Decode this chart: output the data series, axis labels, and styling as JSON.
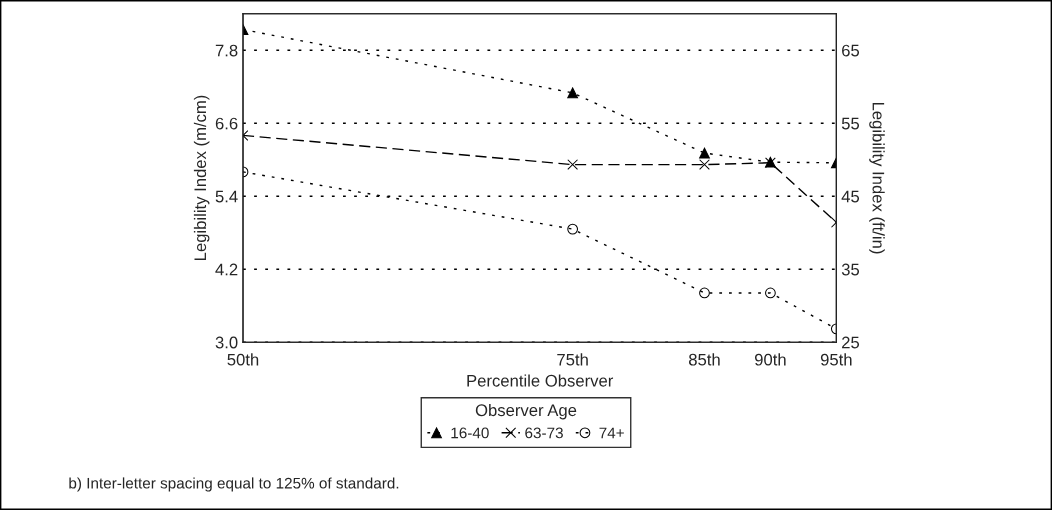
{
  "chart_data": {
    "type": "line",
    "xlabel": "Percentile Observer",
    "ylabel": "Legibility Index (m/cm)",
    "y2label": "Legibility Index (ft/in)",
    "legend_title": "Observer Age",
    "x": [
      50,
      75,
      85,
      90,
      95
    ],
    "series": [
      {
        "name": "16-40",
        "color": "#000000",
        "marker": "triangle",
        "line_style": "dotted",
        "values": [
          8.14,
          7.1,
          6.11,
          5.96,
          5.95
        ]
      },
      {
        "name": "63-73",
        "color": "#000000",
        "marker": "cross",
        "line_style": "dashed",
        "values": [
          6.4,
          5.92,
          5.92,
          5.95,
          4.97
        ]
      },
      {
        "name": "74+",
        "color": "#000000",
        "marker": "circle",
        "line_style": "dotted",
        "values": [
          5.8,
          4.86,
          3.81,
          3.81,
          3.22
        ]
      }
    ],
    "xlim": [
      50,
      95
    ],
    "xticks": [
      {
        "value": 50,
        "label": "50th"
      },
      {
        "value": 75,
        "label": "75th"
      },
      {
        "value": 85,
        "label": "85th"
      },
      {
        "value": 90,
        "label": "90th"
      },
      {
        "value": 95,
        "label": "95th"
      }
    ],
    "ylim": [
      3.0,
      8.4
    ],
    "yticks": [
      {
        "value": 3.0,
        "label": "3.0"
      },
      4.2,
      5.4,
      6.6,
      7.8
    ],
    "y2lim": [
      25,
      70
    ],
    "y2ticks": [
      25,
      35,
      45,
      55,
      65
    ],
    "grid": "y",
    "legend": "bottom",
    "annotations": [
      "b) Inter-letter spacing equal to 125% of standard."
    ]
  }
}
